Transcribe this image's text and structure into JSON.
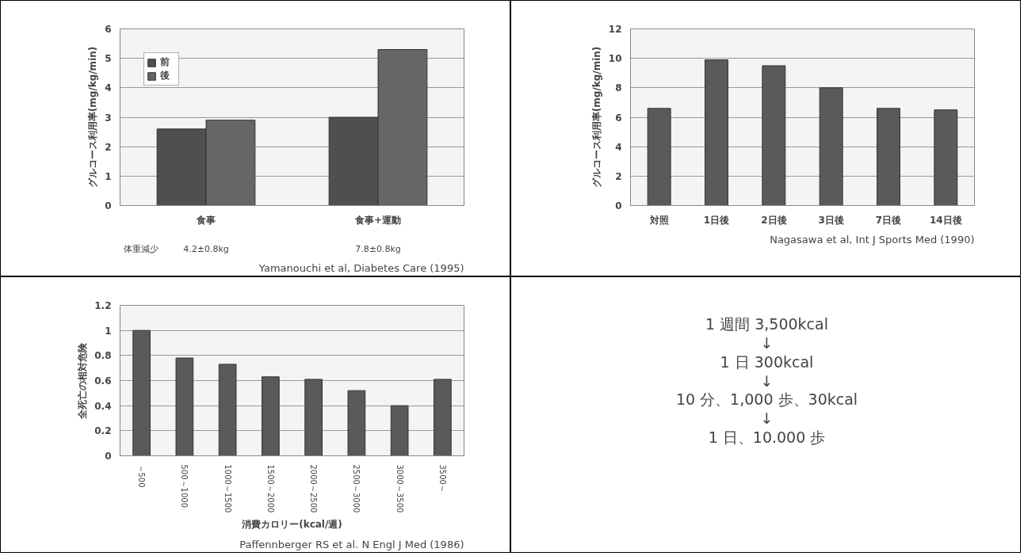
{
  "chart_data": [
    {
      "type": "bar",
      "ylabel": "グルコース利用率(mg/kg/min)",
      "categories": [
        "食事",
        "食事+運動"
      ],
      "series": [
        {
          "name": "前",
          "color": "#4f4f4f",
          "values": [
            2.6,
            3.0
          ]
        },
        {
          "name": "後",
          "color": "#666666",
          "values": [
            2.9,
            5.3
          ]
        }
      ],
      "ylim": [
        0,
        6
      ],
      "yticks": [
        0,
        1,
        2,
        3,
        4,
        5,
        6
      ],
      "grid": "y",
      "legend": "top left",
      "annotations": [
        "体重減少",
        "4.2±0.8kg",
        "7.8±0.8kg",
        "Yamanouchi et al, Diabetes Care (1995)"
      ]
    },
    {
      "type": "bar",
      "ylabel": "グルコース利用率(mg/kg/min)",
      "categories": [
        "対照",
        "1日後",
        "2日後",
        "3日後",
        "7日後",
        "14日後"
      ],
      "values": [
        6.6,
        9.9,
        9.5,
        8.0,
        6.6,
        6.5
      ],
      "color": "#5a5a5a",
      "ylim": [
        0,
        12
      ],
      "yticks": [
        0,
        2,
        4,
        6,
        8,
        10,
        12
      ],
      "grid": "y",
      "annotations": [
        "Nagasawa et al, Int J Sports Med (1990)"
      ]
    },
    {
      "type": "bar",
      "ylabel": "全死亡の相対危険",
      "xlabel": "消費カロリー(kcal/週)",
      "categories": [
        "～500",
        "500～1000",
        "1000～1500",
        "1500～2000",
        "2000～2500",
        "2500～3000",
        "3000～3500",
        "3500～"
      ],
      "values": [
        1.0,
        0.78,
        0.73,
        0.63,
        0.61,
        0.52,
        0.4,
        0.61
      ],
      "color": "#5a5a5a",
      "ylim": [
        0,
        1.2
      ],
      "yticks": [
        0,
        0.2,
        0.4,
        0.6,
        0.8,
        1,
        1.2
      ],
      "grid": "y",
      "annotations": [
        "Paffennberger RS et al. N Engl J Med (1986)"
      ]
    },
    {
      "type": "other",
      "annotations": [
        "1 週間 3,500kcal",
        "↓",
        "1 日 300kcal",
        "↓",
        "10 分、1,000 歩、30kcal",
        "↓",
        "1 日、10.000 歩"
      ]
    }
  ]
}
